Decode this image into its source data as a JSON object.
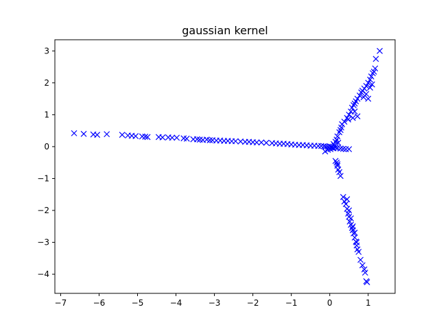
{
  "chart_data": {
    "type": "scatter",
    "title": "gaussian kernel",
    "xlabel": "",
    "ylabel": "",
    "xlim": [
      -7.15,
      1.7
    ],
    "ylim": [
      -4.6,
      3.35
    ],
    "xticks": [
      -7,
      -6,
      -5,
      -4,
      -3,
      -2,
      -1,
      0,
      1
    ],
    "yticks": [
      -4,
      -3,
      -2,
      -1,
      0,
      1,
      2,
      3
    ],
    "xtick_labels": [
      "−7",
      "−6",
      "−5",
      "−4",
      "−3",
      "−2",
      "−1",
      "0",
      "1"
    ],
    "ytick_labels": [
      "−4",
      "−3",
      "−2",
      "−1",
      "0",
      "1",
      "2",
      "3"
    ],
    "grid": false,
    "marker": "x",
    "color": "#0000ff",
    "series": [
      {
        "points": [
          [
            -6.65,
            0.42
          ],
          [
            -6.4,
            0.4
          ],
          [
            -6.15,
            0.38
          ],
          [
            -6.05,
            0.37
          ],
          [
            -5.8,
            0.39
          ],
          [
            -5.4,
            0.37
          ],
          [
            -5.25,
            0.35
          ],
          [
            -5.15,
            0.34
          ],
          [
            -5.05,
            0.33
          ],
          [
            -4.88,
            0.32
          ],
          [
            -4.8,
            0.31
          ],
          [
            -4.74,
            0.3
          ],
          [
            -4.45,
            0.3
          ],
          [
            -4.35,
            0.29
          ],
          [
            -4.2,
            0.29
          ],
          [
            -4.1,
            0.28
          ],
          [
            -3.98,
            0.28
          ],
          [
            -3.8,
            0.26
          ],
          [
            -3.72,
            0.25
          ],
          [
            -3.55,
            0.23
          ],
          [
            -3.45,
            0.23
          ],
          [
            -3.38,
            0.22
          ],
          [
            -3.3,
            0.21
          ],
          [
            -3.2,
            0.22
          ],
          [
            -3.12,
            0.2
          ],
          [
            -3.05,
            0.2
          ],
          [
            -2.95,
            0.19
          ],
          [
            -2.85,
            0.19
          ],
          [
            -2.75,
            0.18
          ],
          [
            -2.65,
            0.18
          ],
          [
            -2.55,
            0.17
          ],
          [
            -2.45,
            0.17
          ],
          [
            -2.32,
            0.16
          ],
          [
            -2.2,
            0.15
          ],
          [
            -2.1,
            0.15
          ],
          [
            -2.0,
            0.14
          ],
          [
            -1.9,
            0.13
          ],
          [
            -1.78,
            0.13
          ],
          [
            -1.65,
            0.12
          ],
          [
            -1.5,
            0.11
          ],
          [
            -1.4,
            0.1
          ],
          [
            -1.3,
            0.09
          ],
          [
            -1.2,
            0.09
          ],
          [
            -1.1,
            0.08
          ],
          [
            -1.0,
            0.07
          ],
          [
            -0.9,
            0.06
          ],
          [
            -0.8,
            0.05
          ],
          [
            -0.7,
            0.05
          ],
          [
            -0.6,
            0.04
          ],
          [
            -0.5,
            0.03
          ],
          [
            -0.4,
            0.03
          ],
          [
            -0.3,
            0.02
          ],
          [
            -0.22,
            0.02
          ],
          [
            -0.15,
            0.01
          ],
          [
            -0.1,
            0.0
          ],
          [
            -0.05,
            0.0
          ],
          [
            0.0,
            0.01
          ],
          [
            0.05,
            -0.02
          ],
          [
            0.08,
            -0.05
          ],
          [
            -0.12,
            -0.15
          ],
          [
            -0.05,
            -0.1
          ],
          [
            0.02,
            -0.08
          ],
          [
            0.1,
            -0.05
          ],
          [
            0.15,
            -0.03
          ],
          [
            0.2,
            -0.04
          ],
          [
            0.28,
            -0.06
          ],
          [
            0.35,
            -0.07
          ],
          [
            0.42,
            -0.08
          ],
          [
            0.5,
            -0.08
          ],
          [
            0.1,
            0.08
          ],
          [
            0.15,
            0.15
          ],
          [
            0.18,
            0.22
          ],
          [
            0.2,
            0.32
          ],
          [
            0.25,
            0.45
          ],
          [
            0.28,
            0.52
          ],
          [
            0.3,
            0.6
          ],
          [
            0.32,
            0.7
          ],
          [
            0.22,
            0.12
          ],
          [
            0.12,
            0.05
          ],
          [
            0.38,
            0.78
          ],
          [
            0.45,
            0.9
          ],
          [
            0.5,
            1.0
          ],
          [
            0.55,
            1.1
          ],
          [
            0.58,
            1.22
          ],
          [
            0.62,
            1.3
          ],
          [
            0.65,
            1.35
          ],
          [
            0.68,
            1.42
          ],
          [
            0.72,
            1.5
          ],
          [
            0.78,
            1.6
          ],
          [
            0.82,
            1.7
          ],
          [
            0.85,
            1.75
          ],
          [
            0.9,
            1.82
          ],
          [
            0.95,
            1.9
          ],
          [
            1.0,
            2.0
          ],
          [
            1.05,
            2.1
          ],
          [
            1.08,
            2.2
          ],
          [
            1.12,
            2.3
          ],
          [
            1.15,
            2.35
          ],
          [
            1.18,
            2.45
          ],
          [
            1.1,
            1.95
          ],
          [
            1.05,
            1.85
          ],
          [
            0.95,
            1.65
          ],
          [
            0.88,
            1.55
          ],
          [
            1.2,
            2.75
          ],
          [
            1.3,
            3.0
          ],
          [
            0.6,
            0.9
          ],
          [
            0.72,
            0.95
          ],
          [
            0.48,
            0.85
          ],
          [
            0.65,
            1.1
          ],
          [
            1.0,
            1.5
          ],
          [
            0.15,
            -0.45
          ],
          [
            0.2,
            -0.6
          ],
          [
            0.22,
            -0.72
          ],
          [
            0.25,
            -0.8
          ],
          [
            0.28,
            -0.92
          ],
          [
            0.18,
            -0.5
          ],
          [
            0.2,
            -0.55
          ],
          [
            0.35,
            -1.58
          ],
          [
            0.38,
            -1.72
          ],
          [
            0.42,
            -1.8
          ],
          [
            0.45,
            -1.95
          ],
          [
            0.48,
            -2.1
          ],
          [
            0.5,
            -2.2
          ],
          [
            0.52,
            -2.35
          ],
          [
            0.55,
            -2.45
          ],
          [
            0.58,
            -2.55
          ],
          [
            0.6,
            -2.62
          ],
          [
            0.62,
            -2.72
          ],
          [
            0.65,
            -2.85
          ],
          [
            0.68,
            -2.98
          ],
          [
            0.7,
            -3.1
          ],
          [
            0.72,
            -3.22
          ],
          [
            0.75,
            -3.3
          ],
          [
            0.8,
            -3.55
          ],
          [
            0.85,
            -3.72
          ],
          [
            0.9,
            -3.85
          ],
          [
            0.92,
            -3.95
          ],
          [
            0.95,
            -4.22
          ],
          [
            0.97,
            -4.25
          ],
          [
            0.45,
            -1.65
          ],
          [
            0.5,
            -2.0
          ],
          [
            0.55,
            -2.25
          ],
          [
            0.6,
            -2.5
          ],
          [
            0.65,
            -2.7
          ],
          [
            0.7,
            -3.0
          ]
        ]
      }
    ]
  }
}
